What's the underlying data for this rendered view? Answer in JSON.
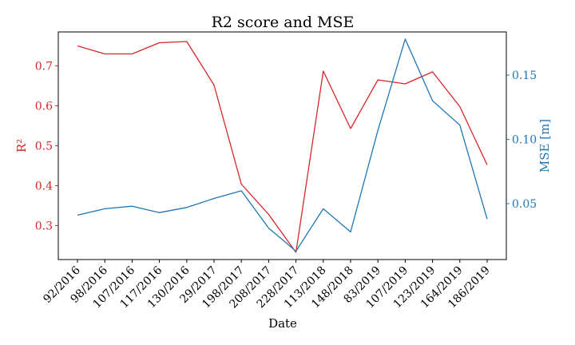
{
  "chart_data": {
    "type": "line",
    "title": "R2 score and MSE",
    "xlabel": "Date",
    "categories": [
      "92/2016",
      "98/2016",
      "107/2016",
      "117/2016",
      "130/2016",
      "29/2017",
      "198/2017",
      "208/2017",
      "228/2017",
      "113/2018",
      "148/2018",
      "83/2019",
      "107/2019",
      "123/2019",
      "164/2019",
      "186/2019"
    ],
    "left_axis": {
      "ylabel": "R²",
      "color": "#d62728",
      "ylim": [
        0.215,
        0.785
      ],
      "ticks": [
        0.3,
        0.4,
        0.5,
        0.6,
        0.7
      ],
      "tick_labels": [
        "0.3",
        "0.4",
        "0.5",
        "0.6",
        "0.7"
      ]
    },
    "right_axis": {
      "ylabel": "MSE [m]",
      "color": "#1f77b4",
      "ylim": [
        0.0065,
        0.1835
      ],
      "ticks": [
        0.05,
        0.1,
        0.15
      ],
      "tick_labels": [
        "0.05",
        "0.10",
        "0.15"
      ]
    },
    "series": [
      {
        "axis": "left",
        "color": "#d62728",
        "values": [
          0.75,
          0.73,
          0.73,
          0.758,
          0.761,
          0.652,
          0.404,
          0.328,
          0.233,
          0.687,
          0.543,
          0.665,
          0.655,
          0.685,
          0.598,
          0.452
        ]
      },
      {
        "axis": "right",
        "color": "#1f77b4",
        "values": [
          0.041,
          0.046,
          0.048,
          0.043,
          0.047,
          0.054,
          0.06,
          0.031,
          0.013,
          0.046,
          0.028,
          0.107,
          0.178,
          0.13,
          0.111,
          0.038
        ]
      }
    ],
    "grid": false,
    "legend": "none"
  }
}
